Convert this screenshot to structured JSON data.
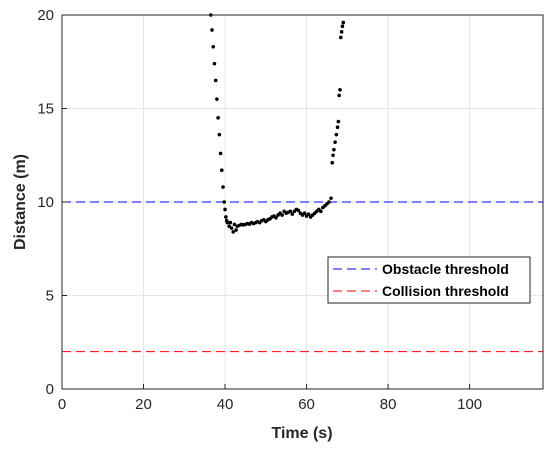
{
  "chart_data": {
    "type": "scatter",
    "xlabel": "Time (s)",
    "ylabel": "Distance (m)",
    "xlim": [
      0,
      118
    ],
    "ylim": [
      0,
      20
    ],
    "xticks": [
      0,
      20,
      40,
      60,
      80,
      100
    ],
    "yticks": [
      0,
      5,
      10,
      15,
      20
    ],
    "x_tick_labels": [
      "0",
      "20",
      "40",
      "60",
      "80",
      "100"
    ],
    "y_tick_labels": [
      "0",
      "5",
      "10",
      "15",
      "20"
    ],
    "grid": true,
    "legend_position": "right-center",
    "reference_lines": [
      {
        "name": "Obstacle threshold",
        "y": 10,
        "color": "#0000ff",
        "style": "dashed"
      },
      {
        "name": "Collision threshold",
        "y": 2,
        "color": "#ff0000",
        "style": "dashed"
      }
    ],
    "series": [
      {
        "color": "#000000",
        "style": "dotted",
        "points": [
          [
            36.5,
            20.0
          ],
          [
            36.8,
            19.2
          ],
          [
            37.1,
            18.3
          ],
          [
            37.4,
            17.4
          ],
          [
            37.7,
            16.5
          ],
          [
            38.0,
            15.5
          ],
          [
            38.3,
            14.5
          ],
          [
            38.6,
            13.6
          ],
          [
            38.9,
            12.6
          ],
          [
            39.2,
            11.7
          ],
          [
            39.5,
            10.8
          ],
          [
            39.8,
            10.0
          ],
          [
            40.0,
            9.6
          ],
          [
            40.2,
            9.2
          ],
          [
            40.4,
            9.0
          ],
          [
            40.6,
            8.9
          ],
          [
            41.0,
            8.7
          ],
          [
            41.3,
            8.9
          ],
          [
            41.6,
            8.6
          ],
          [
            42.0,
            8.4
          ],
          [
            42.3,
            8.8
          ],
          [
            42.7,
            8.5
          ],
          [
            43.0,
            8.7
          ],
          [
            43.5,
            8.75
          ],
          [
            44.0,
            8.8
          ],
          [
            44.5,
            8.78
          ],
          [
            45.0,
            8.8
          ],
          [
            45.5,
            8.85
          ],
          [
            46.0,
            8.82
          ],
          [
            46.5,
            8.9
          ],
          [
            47.0,
            8.85
          ],
          [
            47.5,
            8.9
          ],
          [
            48.0,
            8.95
          ],
          [
            48.5,
            8.9
          ],
          [
            49.0,
            9.0
          ],
          [
            49.5,
            9.05
          ],
          [
            50.0,
            8.95
          ],
          [
            50.5,
            9.05
          ],
          [
            51.0,
            9.1
          ],
          [
            51.5,
            9.2
          ],
          [
            52.0,
            9.25
          ],
          [
            52.5,
            9.15
          ],
          [
            53.0,
            9.3
          ],
          [
            53.5,
            9.4
          ],
          [
            54.0,
            9.3
          ],
          [
            54.5,
            9.5
          ],
          [
            55.0,
            9.4
          ],
          [
            55.5,
            9.45
          ],
          [
            56.0,
            9.5
          ],
          [
            56.5,
            9.35
          ],
          [
            57.0,
            9.5
          ],
          [
            57.5,
            9.6
          ],
          [
            58.0,
            9.55
          ],
          [
            58.5,
            9.4
          ],
          [
            59.0,
            9.3
          ],
          [
            59.5,
            9.4
          ],
          [
            60.0,
            9.25
          ],
          [
            60.5,
            9.35
          ],
          [
            61.0,
            9.2
          ],
          [
            61.5,
            9.3
          ],
          [
            62.0,
            9.4
          ],
          [
            62.5,
            9.5
          ],
          [
            63.0,
            9.6
          ],
          [
            63.5,
            9.5
          ],
          [
            64.0,
            9.7
          ],
          [
            64.5,
            9.8
          ],
          [
            65.0,
            9.9
          ],
          [
            65.5,
            10.0
          ],
          [
            66.0,
            10.2
          ],
          [
            66.3,
            12.1
          ],
          [
            66.5,
            12.5
          ],
          [
            66.7,
            12.8
          ],
          [
            67.0,
            13.2
          ],
          [
            67.3,
            13.6
          ],
          [
            67.6,
            14.0
          ],
          [
            67.8,
            14.3
          ],
          [
            68.0,
            15.7
          ],
          [
            68.2,
            16.0
          ],
          [
            68.4,
            18.8
          ],
          [
            68.6,
            19.1
          ],
          [
            68.8,
            19.4
          ],
          [
            69.0,
            19.6
          ]
        ]
      }
    ]
  }
}
